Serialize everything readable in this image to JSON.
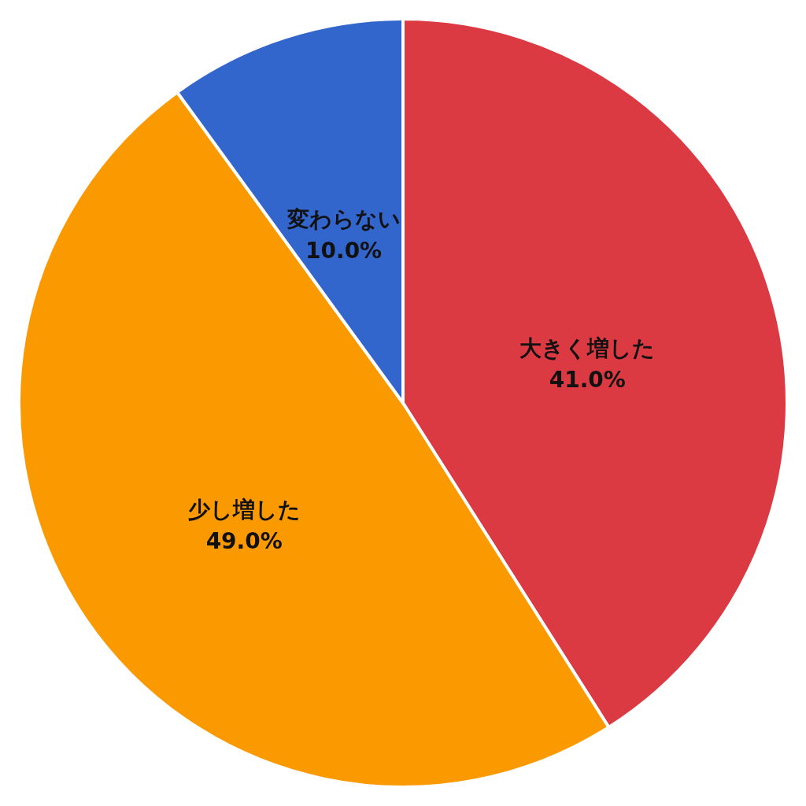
{
  "chart_data": {
    "type": "pie",
    "categories": [
      "大きく増した",
      "少し増した",
      "変わらない"
    ],
    "values": [
      41.0,
      49.0,
      10.0
    ],
    "colors": [
      "#dc3a43",
      "#fa9a00",
      "#3366cc"
    ],
    "value_labels": [
      "41.0%",
      "49.0%",
      "10.0%"
    ],
    "legend": false
  }
}
